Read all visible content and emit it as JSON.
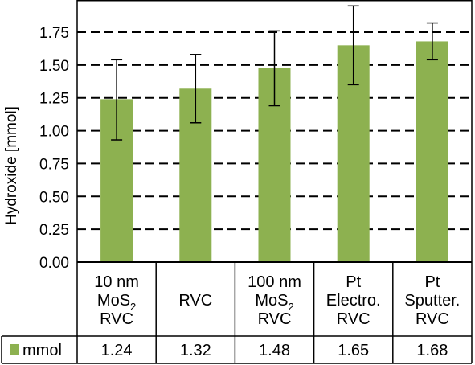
{
  "chart_data": {
    "type": "bar",
    "ylabel": "Hydroxide [mmol]",
    "ylim": [
      0,
      2.0
    ],
    "yticks": [
      "0.00",
      "0.25",
      "0.50",
      "0.75",
      "1.00",
      "1.25",
      "1.50",
      "1.75"
    ],
    "grid": "dashed horizontal",
    "categories": [
      [
        "10 nm",
        "MoS2",
        "RVC"
      ],
      [
        "RVC"
      ],
      [
        "100 nm",
        "MoS2",
        "RVC"
      ],
      [
        "Pt",
        "Electro.",
        "RVC"
      ],
      [
        "Pt",
        "Sputter.",
        "RVC"
      ]
    ],
    "series": [
      {
        "name": "mmol",
        "color": "#8db150",
        "values": [
          1.24,
          1.32,
          1.48,
          1.65,
          1.68
        ],
        "error_low": [
          0.93,
          1.06,
          1.19,
          1.35,
          1.54
        ],
        "error_high": [
          1.54,
          1.58,
          1.76,
          1.95,
          1.82
        ]
      }
    ],
    "table": {
      "legend_label": "mmol",
      "values": [
        "1.24",
        "1.32",
        "1.48",
        "1.65",
        "1.68"
      ]
    }
  }
}
